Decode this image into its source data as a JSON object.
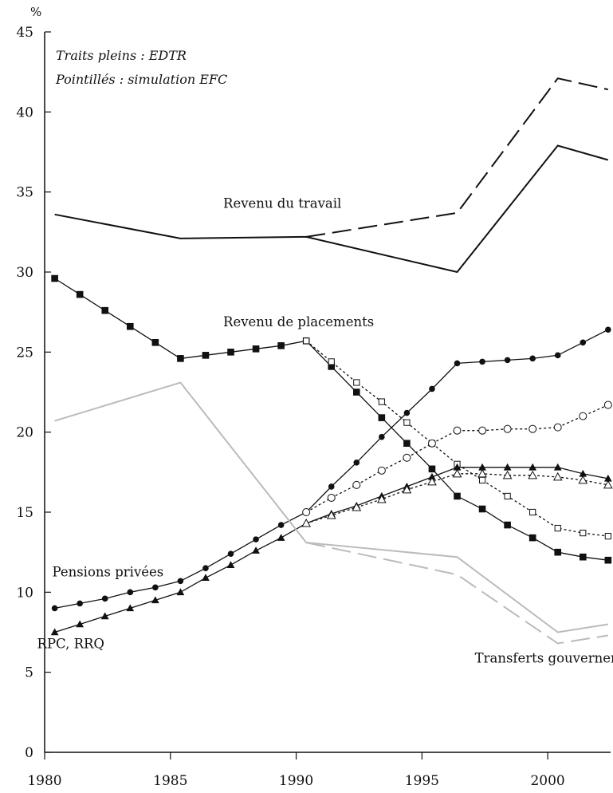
{
  "chart_data": {
    "type": "line",
    "ylabel": "%",
    "xlim": [
      1980,
      2002.5
    ],
    "ylim": [
      0,
      45
    ],
    "xticks": [
      1980,
      1985,
      1990,
      1995,
      2000
    ],
    "yticks": [
      0,
      5,
      10,
      15,
      20,
      25,
      30,
      35,
      40,
      45
    ],
    "grid": false,
    "notes": [
      "Traits pleins : EDTR",
      "Pointillés : simulation EFC"
    ],
    "series": [
      {
        "name": "Revenu du travail",
        "style": "solid",
        "color": "#111111",
        "marker": "none",
        "points": [
          [
            1980.4,
            33.6
          ],
          [
            1985.4,
            32.1
          ],
          [
            1990.4,
            32.2
          ],
          [
            1996.4,
            30.0
          ],
          [
            2000.4,
            37.9
          ],
          [
            2002.4,
            37.0
          ]
        ]
      },
      {
        "name": "Revenu du travail (simulation EFC)",
        "style": "dashed",
        "color": "#111111",
        "marker": "none",
        "points": [
          [
            1990.4,
            32.2
          ],
          [
            1996.4,
            33.7
          ],
          [
            2000.4,
            42.1
          ],
          [
            2002.4,
            41.4
          ]
        ]
      },
      {
        "name": "Revenu de placements",
        "style": "solid",
        "color": "#111111",
        "marker": "square-filled",
        "points": [
          [
            1980.4,
            29.6
          ],
          [
            1981.4,
            28.6
          ],
          [
            1982.4,
            27.6
          ],
          [
            1983.4,
            26.6
          ],
          [
            1984.4,
            25.6
          ],
          [
            1985.4,
            24.6
          ],
          [
            1986.4,
            24.8
          ],
          [
            1987.4,
            25.0
          ],
          [
            1988.4,
            25.2
          ],
          [
            1989.4,
            25.4
          ],
          [
            1990.4,
            25.7
          ],
          [
            1991.4,
            24.1
          ],
          [
            1992.4,
            22.5
          ],
          [
            1993.4,
            20.9
          ],
          [
            1994.4,
            19.3
          ],
          [
            1995.4,
            17.7
          ],
          [
            1996.4,
            16.0
          ],
          [
            1997.4,
            15.2
          ],
          [
            1998.4,
            14.2
          ],
          [
            1999.4,
            13.4
          ],
          [
            2000.4,
            12.5
          ],
          [
            2001.4,
            12.2
          ],
          [
            2002.4,
            12.0
          ]
        ]
      },
      {
        "name": "Revenu de placements (simulation EFC)",
        "style": "dotted",
        "color": "#111111",
        "marker": "square-open",
        "points": [
          [
            1990.4,
            25.7
          ],
          [
            1991.4,
            24.4
          ],
          [
            1992.4,
            23.1
          ],
          [
            1993.4,
            21.9
          ],
          [
            1994.4,
            20.6
          ],
          [
            1995.4,
            19.3
          ],
          [
            1996.4,
            18.0
          ],
          [
            1997.4,
            17.0
          ],
          [
            1998.4,
            16.0
          ],
          [
            1999.4,
            15.0
          ],
          [
            2000.4,
            14.0
          ],
          [
            2001.4,
            13.7
          ],
          [
            2002.4,
            13.5
          ]
        ]
      },
      {
        "name": "Pensions privées",
        "style": "solid",
        "color": "#111111",
        "marker": "circle-filled",
        "points": [
          [
            1980.4,
            9.0
          ],
          [
            1981.4,
            9.3
          ],
          [
            1982.4,
            9.6
          ],
          [
            1983.4,
            10.0
          ],
          [
            1984.4,
            10.3
          ],
          [
            1985.4,
            10.7
          ],
          [
            1986.4,
            11.5
          ],
          [
            1987.4,
            12.4
          ],
          [
            1988.4,
            13.3
          ],
          [
            1989.4,
            14.2
          ],
          [
            1990.4,
            15.0
          ],
          [
            1991.4,
            16.6
          ],
          [
            1992.4,
            18.1
          ],
          [
            1993.4,
            19.7
          ],
          [
            1994.4,
            21.2
          ],
          [
            1995.4,
            22.7
          ],
          [
            1996.4,
            24.3
          ],
          [
            1997.4,
            24.4
          ],
          [
            1998.4,
            24.5
          ],
          [
            1999.4,
            24.6
          ],
          [
            2000.4,
            24.8
          ],
          [
            2001.4,
            25.6
          ],
          [
            2002.4,
            26.4
          ]
        ]
      },
      {
        "name": "Pensions privées (simulation EFC)",
        "style": "dotted",
        "color": "#111111",
        "marker": "circle-open",
        "points": [
          [
            1990.4,
            15.0
          ],
          [
            1991.4,
            15.9
          ],
          [
            1992.4,
            16.7
          ],
          [
            1993.4,
            17.6
          ],
          [
            1994.4,
            18.4
          ],
          [
            1995.4,
            19.3
          ],
          [
            1996.4,
            20.1
          ],
          [
            1997.4,
            20.1
          ],
          [
            1998.4,
            20.2
          ],
          [
            1999.4,
            20.2
          ],
          [
            2000.4,
            20.3
          ],
          [
            2001.4,
            21.0
          ],
          [
            2002.4,
            21.7
          ]
        ]
      },
      {
        "name": "RPC, RRQ",
        "style": "solid",
        "color": "#111111",
        "marker": "triangle-filled",
        "points": [
          [
            1980.4,
            7.5
          ],
          [
            1981.4,
            8.0
          ],
          [
            1982.4,
            8.5
          ],
          [
            1983.4,
            9.0
          ],
          [
            1984.4,
            9.5
          ],
          [
            1985.4,
            10.0
          ],
          [
            1986.4,
            10.9
          ],
          [
            1987.4,
            11.7
          ],
          [
            1988.4,
            12.6
          ],
          [
            1989.4,
            13.4
          ],
          [
            1990.4,
            14.3
          ],
          [
            1991.4,
            14.9
          ],
          [
            1992.4,
            15.4
          ],
          [
            1993.4,
            16.0
          ],
          [
            1994.4,
            16.6
          ],
          [
            1995.4,
            17.2
          ],
          [
            1996.4,
            17.8
          ],
          [
            1997.4,
            17.8
          ],
          [
            1998.4,
            17.8
          ],
          [
            1999.4,
            17.8
          ],
          [
            2000.4,
            17.8
          ],
          [
            2001.4,
            17.4
          ],
          [
            2002.4,
            17.1
          ]
        ]
      },
      {
        "name": "RPC, RRQ (simulation EFC)",
        "style": "dotted",
        "color": "#111111",
        "marker": "triangle-open",
        "points": [
          [
            1990.4,
            14.3
          ],
          [
            1991.4,
            14.8
          ],
          [
            1992.4,
            15.3
          ],
          [
            1993.4,
            15.8
          ],
          [
            1994.4,
            16.4
          ],
          [
            1995.4,
            16.9
          ],
          [
            1996.4,
            17.4
          ],
          [
            1997.4,
            17.4
          ],
          [
            1998.4,
            17.3
          ],
          [
            1999.4,
            17.3
          ],
          [
            2000.4,
            17.2
          ],
          [
            2001.4,
            17.0
          ],
          [
            2002.4,
            16.7
          ]
        ]
      },
      {
        "name": "Transferts gouvernementaux nets",
        "style": "solid",
        "color": "#bbbbbb",
        "marker": "none",
        "points": [
          [
            1980.4,
            20.7
          ],
          [
            1985.4,
            23.1
          ],
          [
            1990.4,
            13.1
          ],
          [
            1996.4,
            12.2
          ],
          [
            2000.4,
            7.5
          ],
          [
            2002.4,
            8.0
          ]
        ]
      },
      {
        "name": "Transferts gouvernementaux nets (simulation EFC)",
        "style": "dashed",
        "color": "#bbbbbb",
        "marker": "none",
        "points": [
          [
            1990.4,
            13.1
          ],
          [
            1996.4,
            11.1
          ],
          [
            2000.4,
            6.8
          ],
          [
            2002.4,
            7.3
          ]
        ]
      }
    ],
    "annotations": [
      {
        "text": "Revenu du travail",
        "x": 1987.1,
        "y": 34.0
      },
      {
        "text": "Revenu de placements",
        "x": 1987.1,
        "y": 26.6
      },
      {
        "text": "Pensions privées",
        "x": 1980.3,
        "y": 11.0
      },
      {
        "text": "RPC, RRQ",
        "x": 1979.7,
        "y": 6.5
      },
      {
        "text": "Transferts gouvernementaux nets",
        "x": 1997.1,
        "y": 5.6
      }
    ]
  }
}
